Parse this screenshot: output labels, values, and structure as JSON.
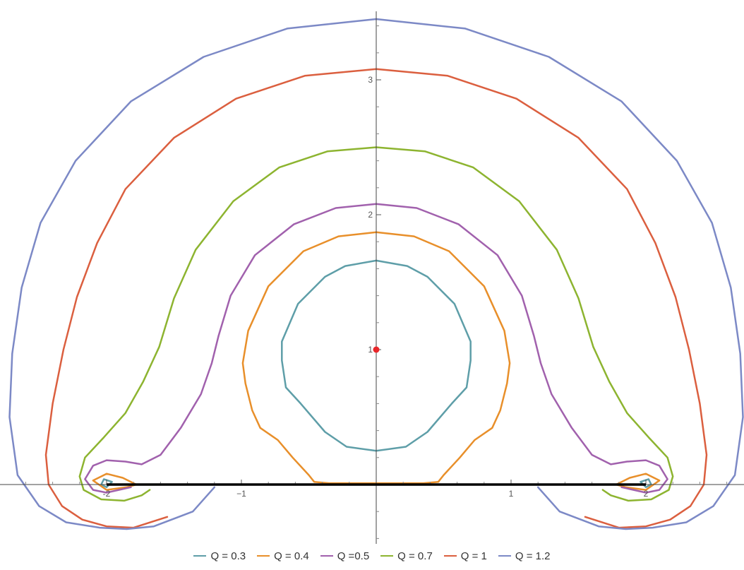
{
  "chart_data": {
    "type": "line",
    "title": "",
    "xlabel": "",
    "ylabel": "",
    "xlim": [
      -2.75,
      2.75
    ],
    "ylim": [
      -0.45,
      3.45
    ],
    "grid": false,
    "legend_position": "bottom",
    "x_ticks": [
      {
        "value": -2,
        "label": "-2"
      },
      {
        "value": -1,
        "label": "−1"
      },
      {
        "value": 1,
        "label": "1"
      },
      {
        "value": 2,
        "label": "2"
      }
    ],
    "y_ticks": [
      {
        "value": 1,
        "label": "1"
      },
      {
        "value": 2,
        "label": "2"
      },
      {
        "value": 3,
        "label": "3"
      }
    ],
    "segment": {
      "from": [
        -2,
        0
      ],
      "to": [
        2,
        0
      ],
      "color": "#000000"
    },
    "marker": {
      "x": 0,
      "y": 1,
      "color": "#e8262a"
    },
    "series": [
      {
        "name": "Q = 0.3",
        "color": "#5e9ea8",
        "x": [
          0,
          0.23,
          0.38,
          0.58,
          0.7,
          0.7,
          0.67,
          0.56,
          0.38,
          0.22,
          0,
          -0.22,
          -0.38,
          -0.56,
          -0.67,
          -0.7,
          -0.7,
          -0.58,
          -0.38,
          -0.23,
          0,
          null,
          -2.04,
          -2.02,
          -1.96,
          -2.0,
          -2.04,
          null,
          2.04,
          2.02,
          1.96,
          2.0,
          2.04
        ],
        "y": [
          1.66,
          1.62,
          1.54,
          1.34,
          1.06,
          0.92,
          0.72,
          0.6,
          0.39,
          0.28,
          0.25,
          0.28,
          0.39,
          0.6,
          0.72,
          0.92,
          1.06,
          1.34,
          1.54,
          1.62,
          1.66,
          null,
          0.0,
          0.04,
          0.02,
          -0.02,
          0.0,
          null,
          0.0,
          0.04,
          0.02,
          -0.02,
          0.0
        ]
      },
      {
        "name": "Q = 0.4",
        "color": "#e88f2a",
        "x": [
          0,
          0.28,
          0.54,
          0.8,
          0.95,
          0.99,
          0.97,
          0.92,
          0.86,
          0.73,
          0.62,
          0.5,
          0.46,
          0.35,
          0.15,
          -0.15,
          -0.35,
          -0.46,
          -0.5,
          -0.62,
          -0.73,
          -0.86,
          -0.92,
          -0.97,
          -0.99,
          -0.95,
          -0.8,
          -0.54,
          -0.28,
          0,
          null,
          -2.1,
          -2.0,
          -1.88,
          -1.78,
          -1.85,
          -2.0,
          -2.1,
          null,
          2.1,
          2.0,
          1.88,
          1.78,
          1.85,
          2.0,
          2.1
        ],
        "y": [
          1.87,
          1.84,
          1.73,
          1.47,
          1.14,
          0.9,
          0.75,
          0.55,
          0.42,
          0.33,
          0.2,
          0.07,
          0.02,
          0.01,
          0.01,
          0.01,
          0.01,
          0.02,
          0.07,
          0.2,
          0.33,
          0.42,
          0.55,
          0.75,
          0.9,
          1.14,
          1.47,
          1.73,
          1.84,
          1.87,
          null,
          0.03,
          0.08,
          0.05,
          0.0,
          -0.02,
          -0.04,
          0.03,
          null,
          0.03,
          0.08,
          0.05,
          0.0,
          -0.02,
          -0.04,
          0.03
        ]
      },
      {
        "name": "Q =0.5",
        "color": "#a161ad",
        "x": [
          0,
          0.3,
          0.61,
          0.9,
          1.08,
          1.17,
          1.22,
          1.3,
          1.45,
          1.6,
          1.74,
          1.86,
          2.0,
          2.1,
          2.16,
          2.1,
          2.0,
          1.82,
          null,
          -1.82,
          -2.0,
          -2.1,
          -2.16,
          -2.1,
          -2.0,
          -1.86,
          -1.74,
          -1.6,
          -1.45,
          -1.3,
          -1.22,
          -1.17,
          -1.08,
          -0.9,
          -0.61,
          -0.3,
          0
        ],
        "y": [
          2.08,
          2.05,
          1.93,
          1.7,
          1.4,
          1.1,
          0.9,
          0.67,
          0.42,
          0.22,
          0.15,
          0.17,
          0.18,
          0.14,
          0.04,
          -0.04,
          -0.06,
          -0.02,
          null,
          -0.02,
          -0.06,
          -0.04,
          0.04,
          0.14,
          0.18,
          0.17,
          0.15,
          0.22,
          0.42,
          0.67,
          0.9,
          1.1,
          1.4,
          1.7,
          1.93,
          2.05,
          2.08
        ]
      },
      {
        "name": "Q = 0.7",
        "color": "#8db430",
        "x": [
          0,
          0.36,
          0.72,
          1.06,
          1.34,
          1.5,
          1.61,
          1.73,
          1.86,
          2.02,
          2.16,
          2.2,
          2.17,
          2.04,
          1.87,
          1.74,
          1.68,
          null,
          -1.68,
          -1.74,
          -1.87,
          -2.04,
          -2.17,
          -2.2,
          -2.16,
          -2.02,
          -1.86,
          -1.73,
          -1.61,
          -1.5,
          -1.34,
          -1.06,
          -0.72,
          -0.36,
          0
        ],
        "y": [
          2.5,
          2.47,
          2.35,
          2.1,
          1.74,
          1.38,
          1.02,
          0.76,
          0.53,
          0.35,
          0.2,
          0.06,
          -0.04,
          -0.11,
          -0.12,
          -0.08,
          -0.04,
          null,
          -0.04,
          -0.08,
          -0.12,
          -0.11,
          -0.04,
          0.06,
          0.2,
          0.35,
          0.53,
          0.76,
          1.02,
          1.38,
          1.74,
          2.1,
          2.35,
          2.47,
          2.5
        ]
      },
      {
        "name": "Q = 1",
        "color": "#db5f3f",
        "x": [
          0,
          0.53,
          1.04,
          1.5,
          1.86,
          2.07,
          2.22,
          2.32,
          2.4,
          2.45,
          2.43,
          2.33,
          2.18,
          2.0,
          1.8,
          1.55,
          null,
          -1.55,
          -1.8,
          -2.0,
          -2.18,
          -2.33,
          -2.43,
          -2.45,
          -2.4,
          -2.32,
          -2.22,
          -2.07,
          -1.86,
          -1.5,
          -1.04,
          -0.53,
          0
        ],
        "y": [
          3.08,
          3.03,
          2.86,
          2.57,
          2.19,
          1.79,
          1.39,
          1.0,
          0.6,
          0.22,
          0.0,
          -0.16,
          -0.26,
          -0.31,
          -0.32,
          -0.24,
          null,
          -0.24,
          -0.32,
          -0.31,
          -0.26,
          -0.16,
          0.0,
          0.22,
          0.6,
          1.0,
          1.39,
          1.79,
          2.19,
          2.57,
          2.86,
          3.03,
          3.08
        ]
      },
      {
        "name": "Q = 1.2",
        "color": "#7c89c6",
        "x": [
          0,
          0.66,
          1.28,
          1.82,
          2.23,
          2.49,
          2.63,
          2.7,
          2.72,
          2.66,
          2.5,
          2.3,
          2.05,
          1.85,
          1.65,
          1.36,
          1.2,
          null,
          -1.2,
          -1.36,
          -1.65,
          -1.85,
          -2.05,
          -2.3,
          -2.5,
          -2.66,
          -2.72,
          -2.7,
          -2.63,
          -2.49,
          -2.23,
          -1.82,
          -1.28,
          -0.66,
          0
        ],
        "y": [
          3.45,
          3.38,
          3.17,
          2.84,
          2.4,
          1.94,
          1.46,
          0.97,
          0.5,
          0.07,
          -0.16,
          -0.28,
          -0.32,
          -0.33,
          -0.31,
          -0.2,
          -0.02,
          null,
          -0.02,
          -0.2,
          -0.31,
          -0.33,
          -0.32,
          -0.28,
          -0.16,
          0.07,
          0.5,
          0.97,
          1.46,
          1.94,
          2.4,
          2.84,
          3.17,
          3.38,
          3.45
        ]
      }
    ]
  }
}
